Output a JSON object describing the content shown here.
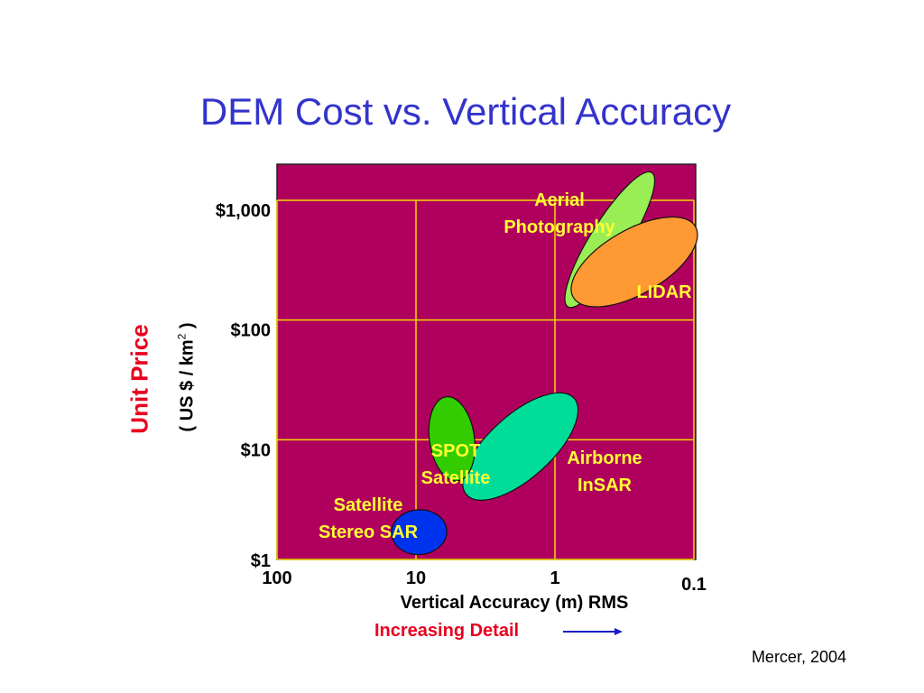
{
  "slide": {
    "title": "DEM Cost vs. Vertical Accuracy",
    "credit": "Mercer, 2004"
  },
  "chart_data": {
    "type": "scatter",
    "title": "DEM Cost vs. Vertical Accuracy",
    "ylabel_title": "Unit Price",
    "ylabel_units_pre": "( US $ / km",
    "ylabel_units_sup": "2",
    "ylabel_units_post": " )",
    "xlabel": "Vertical Accuracy (m) RMS",
    "x_annotation": "Increasing Detail",
    "x_scale": "log",
    "x_reversed": true,
    "y_scale": "log",
    "xlim": [
      100,
      0.1
    ],
    "ylim": [
      1,
      2000
    ],
    "x_ticks": [
      {
        "value": 100,
        "label": "100"
      },
      {
        "value": 10,
        "label": "10"
      },
      {
        "value": 1,
        "label": "1"
      },
      {
        "value": 0.1,
        "label": "0.1"
      }
    ],
    "y_ticks": [
      {
        "value": 1,
        "label": "$1"
      },
      {
        "value": 10,
        "label": "$10"
      },
      {
        "value": 100,
        "label": "$100"
      },
      {
        "value": 1000,
        "label": "$1,000"
      }
    ],
    "grid": true,
    "colors": {
      "plot_background": "#b0005e",
      "grid": "#f2d800",
      "label_text": "#ffff33",
      "title": "#3333cc",
      "axis_title": "#e8001e",
      "arrow": "#1a1acc"
    },
    "regions": [
      {
        "label_lines": [
          "Aerial",
          "Photography"
        ],
        "fill": "#99ee55",
        "x_range": [
          0.65,
          0.25
        ],
        "y_range": [
          110,
          2000
        ]
      },
      {
        "label_lines": [
          "LIDAR"
        ],
        "fill": "#ff9933",
        "x_range": [
          0.6,
          0.12
        ],
        "y_range": [
          110,
          850
        ]
      },
      {
        "label_lines": [
          "Airborne",
          "InSAR"
        ],
        "fill": "#00dd99",
        "x_range": [
          4.5,
          0.7
        ],
        "y_range": [
          3.5,
          22
        ]
      },
      {
        "label_lines": [
          "SPOT",
          "Satellite"
        ],
        "fill": "#33cc00",
        "x_range": [
          8,
          3.8
        ],
        "y_range": [
          4.5,
          23
        ]
      },
      {
        "label_lines": [
          "Satellite",
          "Stereo SAR"
        ],
        "fill": "#0033ee",
        "x_range": [
          15,
          6
        ],
        "y_range": [
          1.1,
          2.6
        ]
      }
    ]
  }
}
